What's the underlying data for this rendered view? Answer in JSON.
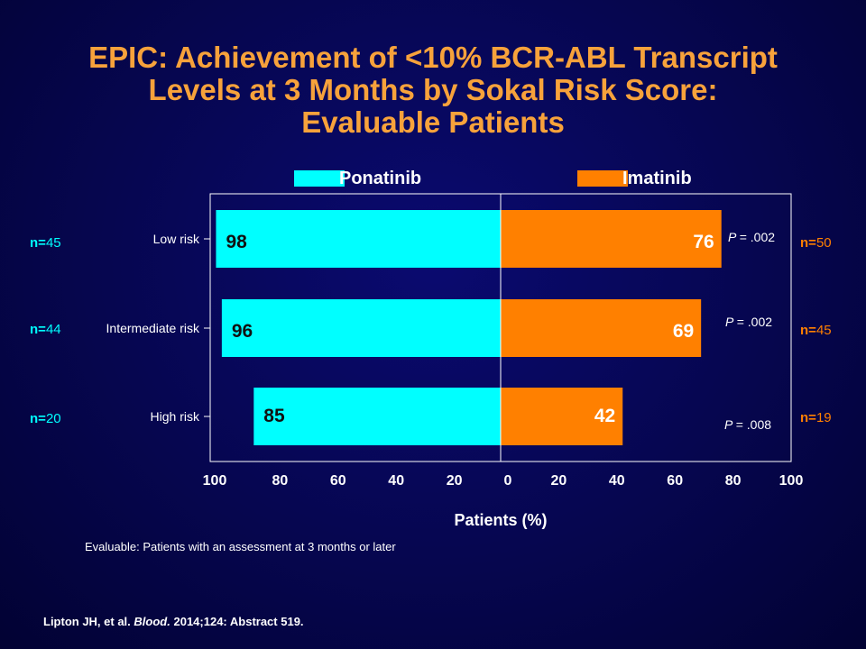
{
  "title_lines": [
    "EPIC: Achievement of <10% BCR-ABL Transcript",
    "Levels at 3 Months by Sokal Risk Score:",
    "Evaluable Patients"
  ],
  "colors": {
    "ponatinib": "#00ffff",
    "imatinib": "#ff8000",
    "title": "#f7a23b",
    "background": "#06064f"
  },
  "legend": {
    "ponatinib": "Ponatinib",
    "imatinib": "Imatinib"
  },
  "chart_data": {
    "type": "bar",
    "orientation": "horizontal-diverging",
    "categories": [
      "Low risk",
      "Intermediate risk",
      "High risk"
    ],
    "series": [
      {
        "name": "Ponatinib",
        "side": "left",
        "values": [
          98,
          96,
          85
        ],
        "value_labels": [
          "98",
          "96",
          "85"
        ],
        "n_labels": [
          "n=",
          "n=",
          "n="
        ],
        "n_values": [
          "45",
          "44",
          "20"
        ]
      },
      {
        "name": "Imatinib",
        "side": "right",
        "values": [
          76,
          69,
          42
        ],
        "value_labels": [
          "76",
          "69",
          "42"
        ],
        "n_labels": [
          "n=",
          "n=",
          "n="
        ],
        "n_values": [
          "50",
          "45",
          "19"
        ]
      }
    ],
    "p_values": [
      {
        "label": "P",
        "value": "= .002"
      },
      {
        "label": "P",
        "value": "= .002"
      },
      {
        "label": "P",
        "value": "= .008"
      }
    ],
    "x_ticks_left": [
      "100",
      "80",
      "60",
      "40",
      "20"
    ],
    "x_ticks_right": [
      "0",
      "20",
      "40",
      "60",
      "80",
      "100"
    ],
    "xlim": [
      0,
      100
    ],
    "xlabel": "Patients (%)",
    "grid": false
  },
  "footnote": "Evaluable: Patients with an assessment at 3 months or later",
  "citation": {
    "authors": "Lipton JH, et al.",
    "journal": "Blood.",
    "details": "2014;124: Abstract 519."
  }
}
